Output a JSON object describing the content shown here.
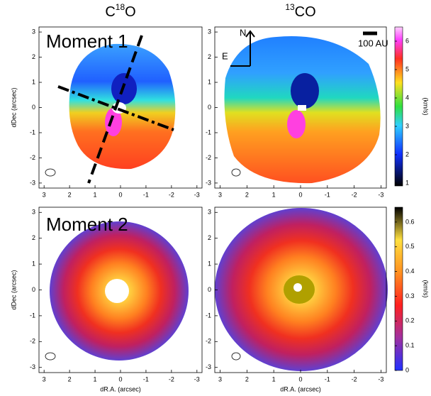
{
  "column_titles": [
    {
      "prefix": "C",
      "sup": "18",
      "suffix": "O"
    },
    {
      "sup": "13",
      "suffix": "CO"
    }
  ],
  "row_labels": [
    "Moment 1",
    "Moment 2"
  ],
  "axes": {
    "x_label": "dR.A. (arcsec)",
    "y_label": "dDec (arcsec)",
    "xticks": [
      3,
      2,
      1,
      0,
      -1,
      -2,
      -3
    ],
    "yticks": [
      3,
      2,
      1,
      0,
      -1,
      -2,
      -3
    ],
    "xlim": [
      3.2,
      -3.2
    ],
    "ylim": [
      -3.2,
      3.2
    ]
  },
  "compass": {
    "north": "N",
    "east": "E",
    "scale": "100 AU"
  },
  "colorbars": [
    {
      "label": "(km/s)",
      "lim": [
        0.9,
        6.5
      ],
      "ticks": [
        1,
        2,
        3,
        4,
        5,
        6
      ]
    },
    {
      "label": "(km/s)",
      "lim": [
        0,
        0.66
      ],
      "ticks": [
        0,
        0.1,
        0.2,
        0.3,
        0.4,
        0.5,
        0.6
      ]
    }
  ]
}
